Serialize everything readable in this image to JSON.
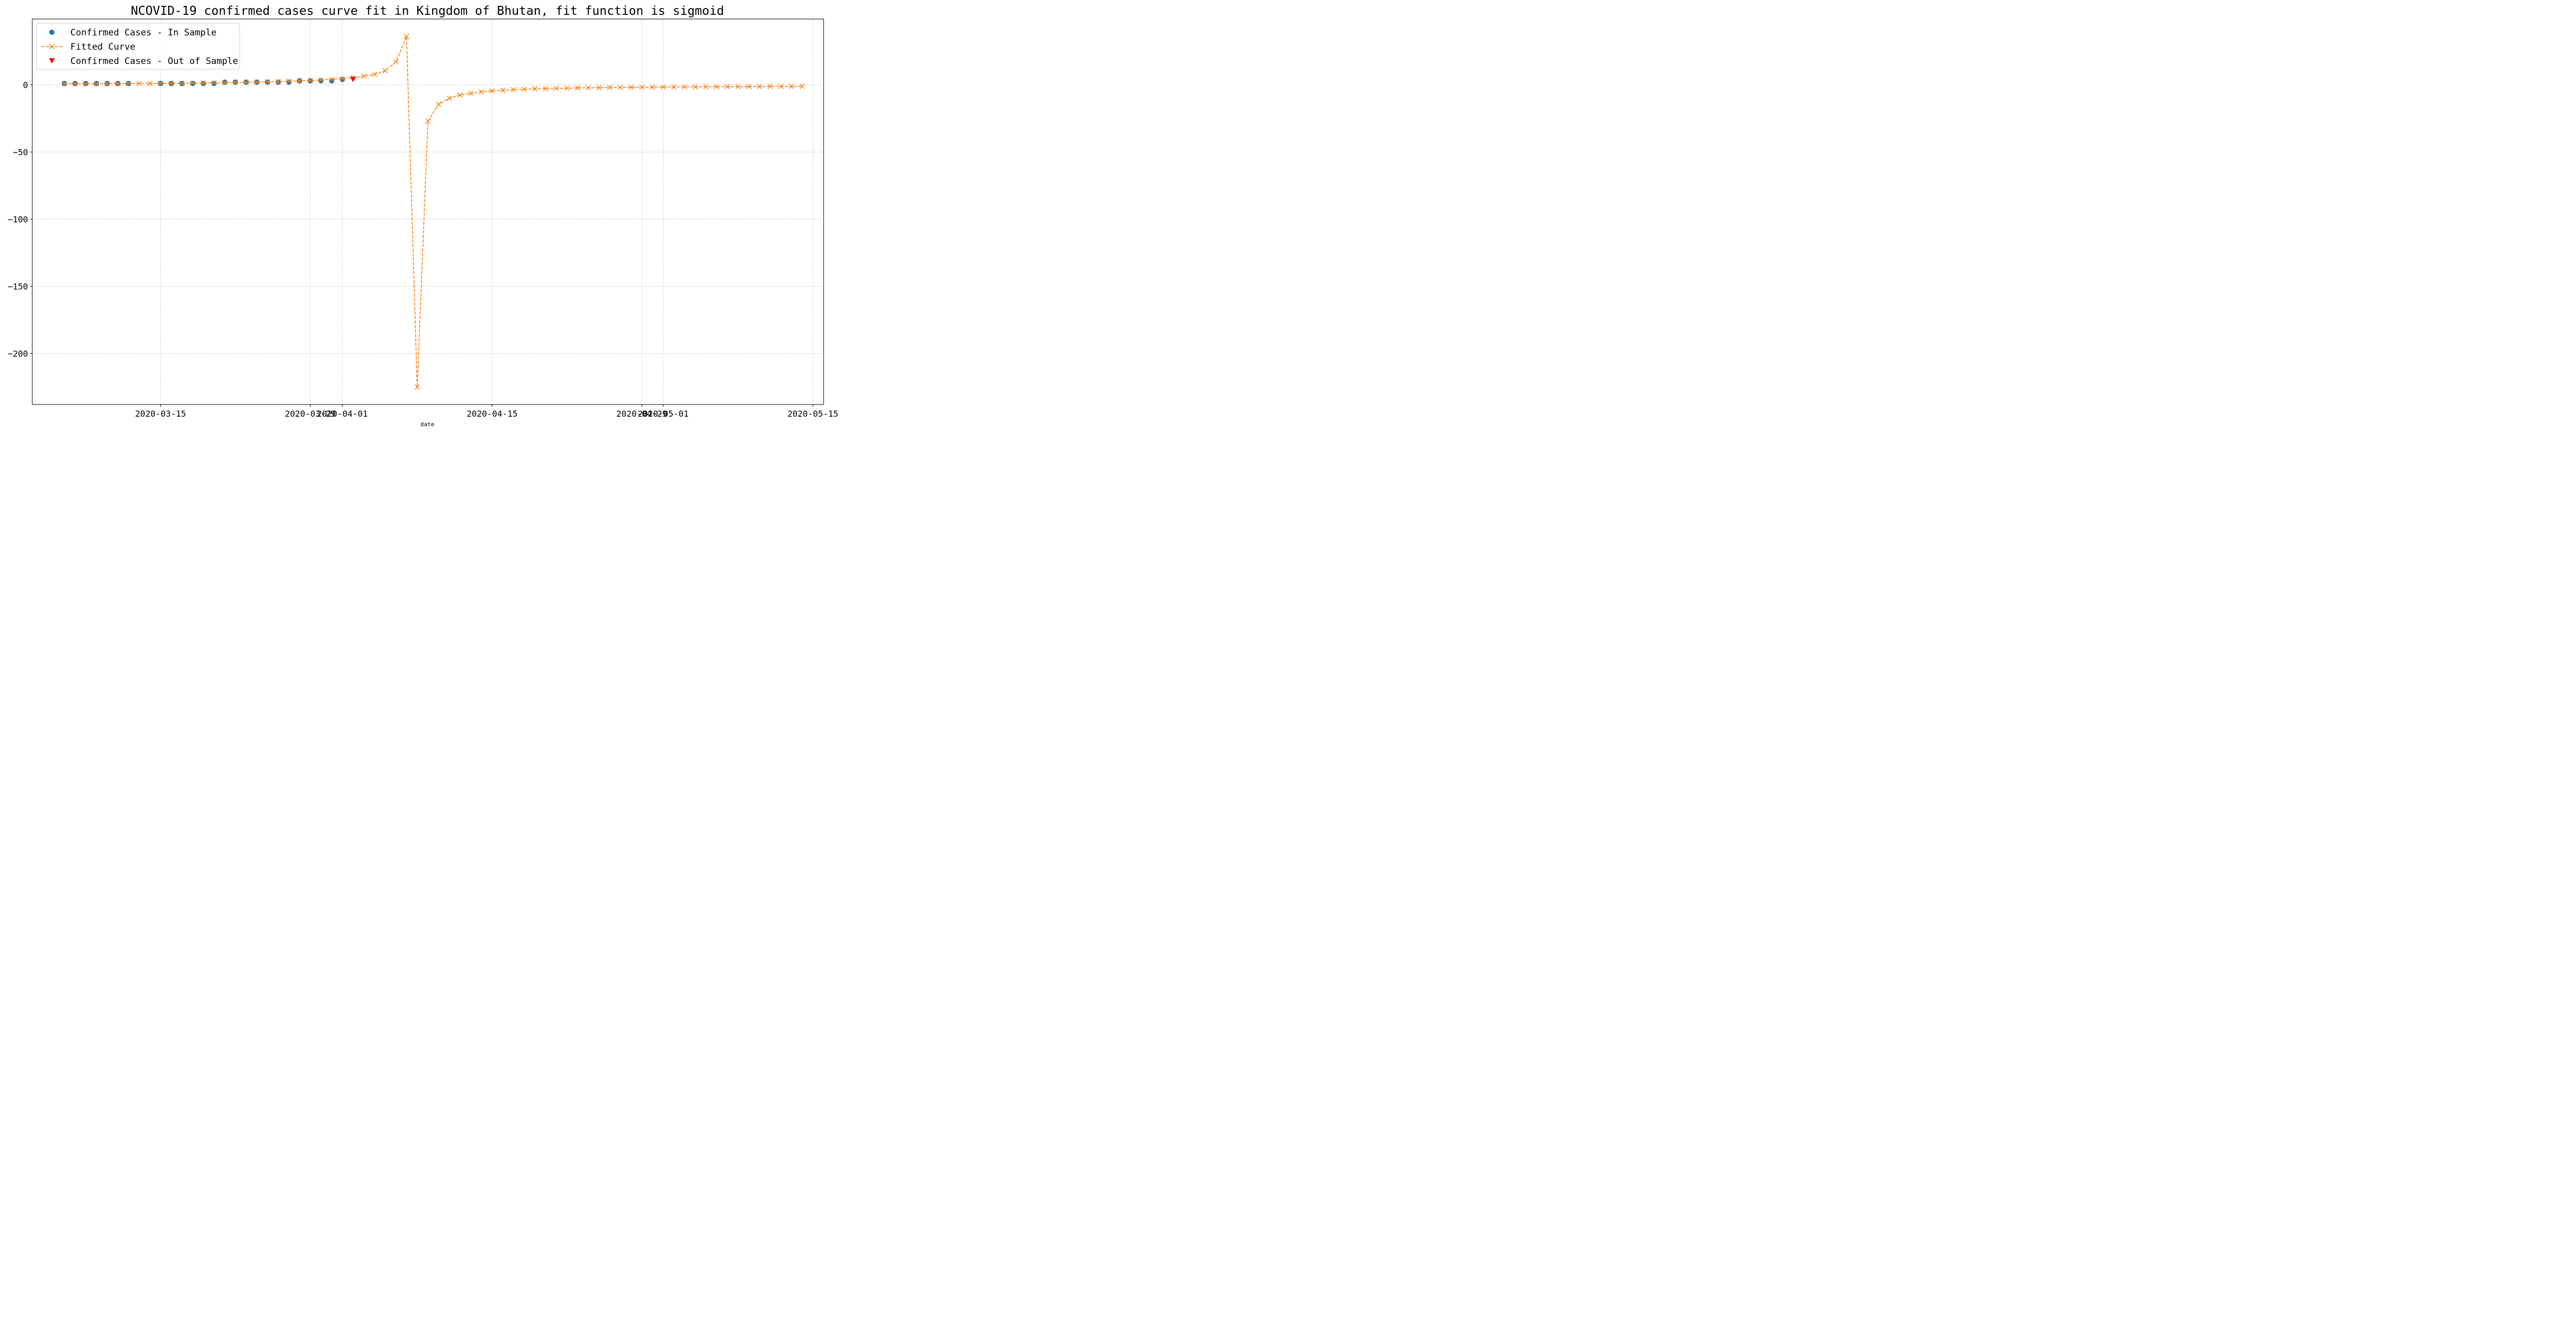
{
  "chart_data": {
    "type": "line",
    "title": "NCOVID-19 confirmed cases curve fit in Kingdom of Bhutan, fit function is sigmoid",
    "xlabel": "date",
    "ylabel": "",
    "x_start": "2020-03-06",
    "x_range": [
      "2020-03-03",
      "2020-05-16"
    ],
    "ylim": [
      -238,
      49
    ],
    "grid": true,
    "legend_position": "top-left",
    "x_ticks": [
      {
        "date": "2020-03-15",
        "label": "2020-03-15"
      },
      {
        "date": "2020-03-29",
        "label": "2020-03-29"
      },
      {
        "date": "2020-04-01",
        "label": "2020-04-01"
      },
      {
        "date": "2020-04-15",
        "label": "2020-04-15"
      },
      {
        "date": "2020-04-29",
        "label": "2020-04-29"
      },
      {
        "date": "2020-05-01",
        "label": "2020-05-01"
      },
      {
        "date": "2020-05-15",
        "label": "2020-05-15"
      }
    ],
    "y_ticks": [
      {
        "value": 0,
        "label": "0"
      },
      {
        "value": -50,
        "label": "−50"
      },
      {
        "value": -100,
        "label": "−100"
      },
      {
        "value": -150,
        "label": "−150"
      },
      {
        "value": -200,
        "label": "−200"
      }
    ],
    "series": [
      {
        "name": "Confirmed Cases - In Sample",
        "marker": "circle",
        "color": "#1f77b4",
        "x": [
          "2020-03-06",
          "2020-03-07",
          "2020-03-08",
          "2020-03-09",
          "2020-03-10",
          "2020-03-11",
          "2020-03-12",
          "2020-03-15",
          "2020-03-16",
          "2020-03-17",
          "2020-03-18",
          "2020-03-19",
          "2020-03-20",
          "2020-03-21",
          "2020-03-22",
          "2020-03-23",
          "2020-03-24",
          "2020-03-25",
          "2020-03-26",
          "2020-03-27",
          "2020-03-28",
          "2020-03-29",
          "2020-03-30",
          "2020-03-31",
          "2020-04-01"
        ],
        "values": [
          1,
          1,
          1,
          1,
          1,
          1,
          1,
          1,
          1,
          1,
          1,
          1,
          1,
          2,
          2,
          2,
          2,
          2,
          2,
          2,
          3,
          3,
          3,
          3,
          4
        ]
      },
      {
        "name": "Fitted Curve",
        "marker": "x",
        "line": "dashed",
        "color": "#ff7f0e",
        "x": [
          "2020-03-06",
          "2020-03-07",
          "2020-03-08",
          "2020-03-09",
          "2020-03-10",
          "2020-03-11",
          "2020-03-12",
          "2020-03-13",
          "2020-03-14",
          "2020-03-15",
          "2020-03-16",
          "2020-03-17",
          "2020-03-18",
          "2020-03-19",
          "2020-03-20",
          "2020-03-21",
          "2020-03-22",
          "2020-03-23",
          "2020-03-24",
          "2020-03-25",
          "2020-03-26",
          "2020-03-27",
          "2020-03-28",
          "2020-03-29",
          "2020-03-30",
          "2020-03-31",
          "2020-04-01",
          "2020-04-02",
          "2020-04-03",
          "2020-04-04",
          "2020-04-05",
          "2020-04-06",
          "2020-04-07",
          "2020-04-08",
          "2020-04-09",
          "2020-04-10",
          "2020-04-11",
          "2020-04-12",
          "2020-04-13",
          "2020-04-14",
          "2020-04-15",
          "2020-04-16",
          "2020-04-17",
          "2020-04-18",
          "2020-04-19",
          "2020-04-20",
          "2020-04-21",
          "2020-04-22",
          "2020-04-23",
          "2020-04-24",
          "2020-04-25",
          "2020-04-26",
          "2020-04-27",
          "2020-04-28",
          "2020-04-29",
          "2020-04-30",
          "2020-05-01",
          "2020-05-02",
          "2020-05-03",
          "2020-05-04",
          "2020-05-05",
          "2020-05-06",
          "2020-05-07",
          "2020-05-08",
          "2020-05-09",
          "2020-05-10",
          "2020-05-11",
          "2020-05-12",
          "2020-05-13",
          "2020-05-14"
        ],
        "values": [
          0.8,
          0.8,
          0.8,
          0.9,
          0.9,
          0.9,
          1.0,
          1.0,
          1.1,
          1.1,
          1.2,
          1.2,
          1.3,
          1.4,
          1.5,
          1.6,
          1.8,
          1.9,
          2.0,
          2.2,
          2.4,
          2.7,
          3.0,
          3.3,
          3.7,
          4.2,
          4.6,
          5.4,
          6.4,
          7.8,
          10.5,
          17.0,
          36.0,
          -225.0,
          -27.0,
          -14.5,
          -10.0,
          -7.6,
          -6.2,
          -5.2,
          -4.5,
          -4.0,
          -3.6,
          -3.3,
          -3.0,
          -2.8,
          -2.6,
          -2.5,
          -2.3,
          -2.2,
          -2.1,
          -2.0,
          -1.9,
          -1.8,
          -1.8,
          -1.7,
          -1.6,
          -1.6,
          -1.5,
          -1.5,
          -1.4,
          -1.4,
          -1.3,
          -1.3,
          -1.3,
          -1.2,
          -1.2,
          -1.2,
          -1.1,
          -1.1
        ]
      },
      {
        "name": "Confirmed Cases - Out of Sample",
        "marker": "triangle-down",
        "color": "#ff0000",
        "x": [
          "2020-04-02"
        ],
        "values": [
          4
        ]
      }
    ]
  }
}
